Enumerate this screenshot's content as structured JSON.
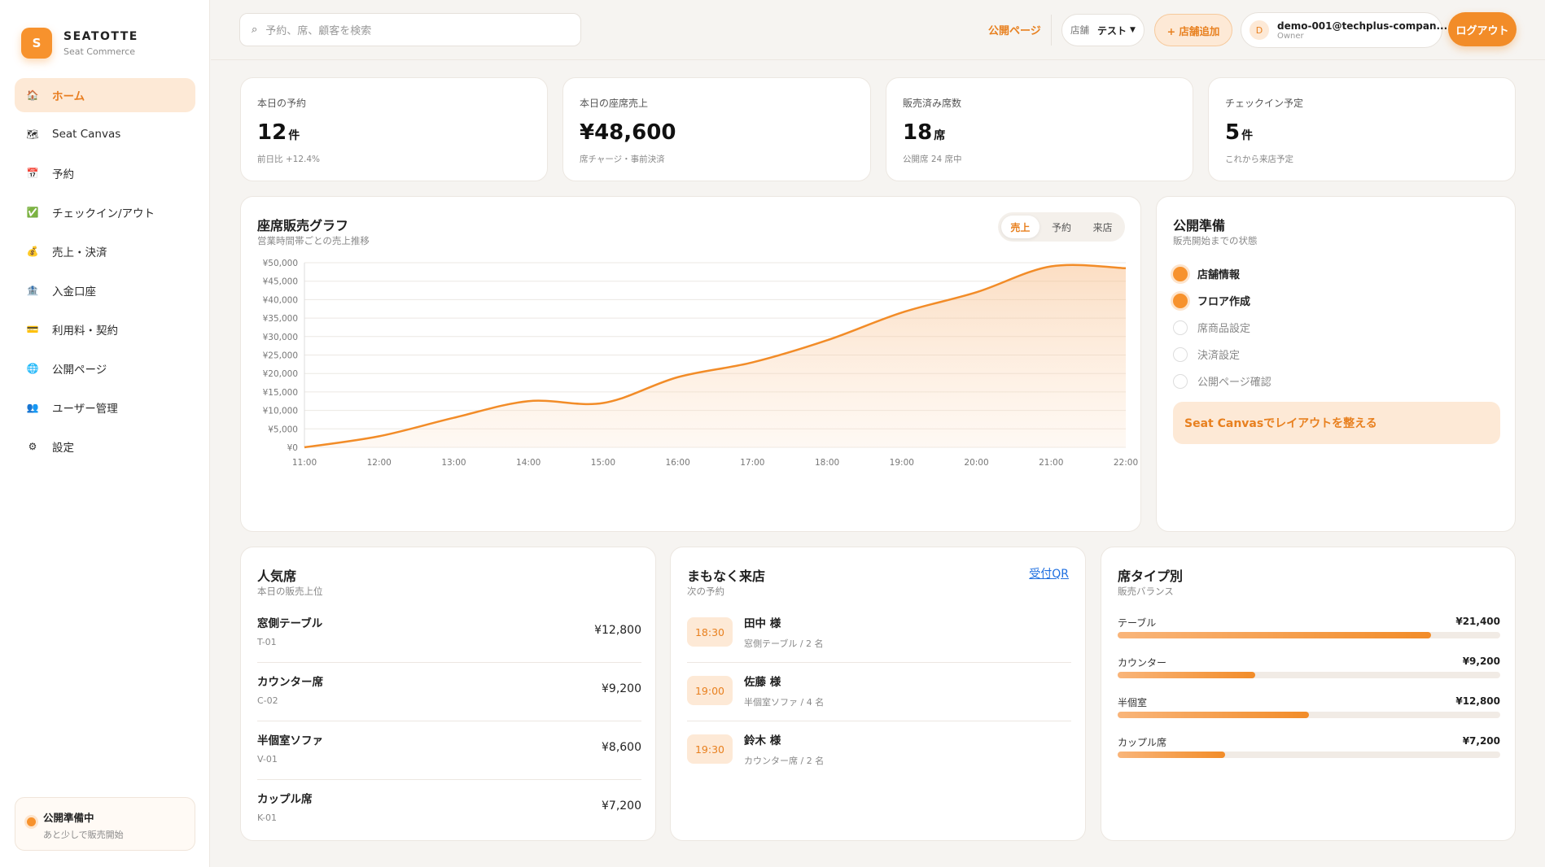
{
  "brand": {
    "name": "SEATOTTE",
    "sub": "Seat Commerce",
    "logo_letter": "S"
  },
  "nav": [
    {
      "label": "ホーム",
      "icon": "house-icon",
      "glyph": "🏠",
      "active": true
    },
    {
      "label": "Seat Canvas",
      "icon": "map-icon",
      "glyph": "🗺"
    },
    {
      "label": "予約",
      "icon": "calendar-icon",
      "glyph": "📅"
    },
    {
      "label": "チェックイン/アウト",
      "icon": "checkbox-icon",
      "glyph": "✅"
    },
    {
      "label": "売上・決済",
      "icon": "money-bag-icon",
      "glyph": "💰"
    },
    {
      "label": "入金口座",
      "icon": "bank-icon",
      "glyph": "🏦"
    },
    {
      "label": "利用料・契約",
      "icon": "credit-card-icon",
      "glyph": "💳"
    },
    {
      "label": "公開ページ",
      "icon": "globe-icon",
      "glyph": "🌐"
    },
    {
      "label": "ユーザー管理",
      "icon": "users-icon",
      "glyph": "👥"
    },
    {
      "label": "設定",
      "icon": "gear-icon",
      "glyph": "⚙"
    }
  ],
  "status": {
    "title": "公開準備中",
    "sub": "あと少しで販売開始"
  },
  "topbar": {
    "search_placeholder": "予約、席、顧客を検索",
    "public_page": "公開ページ",
    "store_label": "店舗",
    "store_value": "テスト",
    "add_store": "+ 店舗追加",
    "user_email": "demo-001@techplus-compan...",
    "user_role": "Owner",
    "avatar_letter": "D",
    "logout": "ログアウト"
  },
  "kpis": [
    {
      "label": "本日の予約",
      "value": "12",
      "unit": "件",
      "sub": "前日比 +12.4%"
    },
    {
      "label": "本日の座席売上",
      "value": "¥48,600",
      "unit": "",
      "sub": "席チャージ・事前決済"
    },
    {
      "label": "販売済み席数",
      "value": "18",
      "unit": "席",
      "sub": "公開席 24 席中"
    },
    {
      "label": "チェックイン予定",
      "value": "5",
      "unit": "件",
      "sub": "これから来店予定"
    }
  ],
  "sales_chart": {
    "title": "座席販売グラフ",
    "subtitle": "営業時間帯ごとの売上推移",
    "tabs": [
      "売上",
      "予約",
      "来店"
    ],
    "active_tab": 0
  },
  "chart_data": {
    "type": "area",
    "x": [
      "11:00",
      "12:00",
      "13:00",
      "14:00",
      "15:00",
      "16:00",
      "17:00",
      "18:00",
      "19:00",
      "20:00",
      "21:00",
      "22:00"
    ],
    "series": [
      {
        "values": [
          0,
          3000,
          8000,
          12500,
          12000,
          19000,
          23000,
          29000,
          36500,
          42000,
          49000,
          48500
        ]
      }
    ],
    "y_ticks": [
      "¥0",
      "¥5,000",
      "¥10,000",
      "¥15,000",
      "¥20,000",
      "¥25,000",
      "¥30,000",
      "¥35,000",
      "¥40,000",
      "¥45,000",
      "¥50,000"
    ],
    "ylim": [
      0,
      50000
    ],
    "grid": true,
    "color": "#f28c28"
  },
  "prep": {
    "title": "公開準備",
    "subtitle": "販売開始までの状態",
    "items": [
      {
        "label": "店舗情報",
        "done": true
      },
      {
        "label": "フロア作成",
        "done": true
      },
      {
        "label": "席商品設定",
        "done": false
      },
      {
        "label": "決済設定",
        "done": false
      },
      {
        "label": "公開ページ確認",
        "done": false
      }
    ],
    "cta": "Seat Canvasでレイアウトを整える"
  },
  "popular": {
    "title": "人気席",
    "subtitle": "本日の販売上位",
    "rows": [
      {
        "name": "窓側テーブル",
        "code": "T-01",
        "price": "¥12,800"
      },
      {
        "name": "カウンター席",
        "code": "C-02",
        "price": "¥9,200"
      },
      {
        "name": "半個室ソファ",
        "code": "V-01",
        "price": "¥8,600"
      },
      {
        "name": "カップル席",
        "code": "K-01",
        "price": "¥7,200"
      }
    ]
  },
  "arrivals": {
    "title": "まもなく来店",
    "subtitle": "次の予約",
    "link": "受付QR",
    "rows": [
      {
        "time": "18:30",
        "name": "田中 様",
        "detail": "窓側テーブル / 2 名"
      },
      {
        "time": "19:00",
        "name": "佐藤 様",
        "detail": "半個室ソファ / 4 名"
      },
      {
        "time": "19:30",
        "name": "鈴木 様",
        "detail": "カウンター席 / 2 名"
      }
    ]
  },
  "seat_types": {
    "title": "席タイプ別",
    "subtitle": "販売バランス",
    "rows": [
      {
        "label": "テーブル",
        "value": "¥21,400",
        "fraction": 0.82
      },
      {
        "label": "カウンター",
        "value": "¥9,200",
        "fraction": 0.36
      },
      {
        "label": "半個室",
        "value": "¥12,800",
        "fraction": 0.5
      },
      {
        "label": "カップル席",
        "value": "¥7,200",
        "fraction": 0.28
      }
    ]
  }
}
